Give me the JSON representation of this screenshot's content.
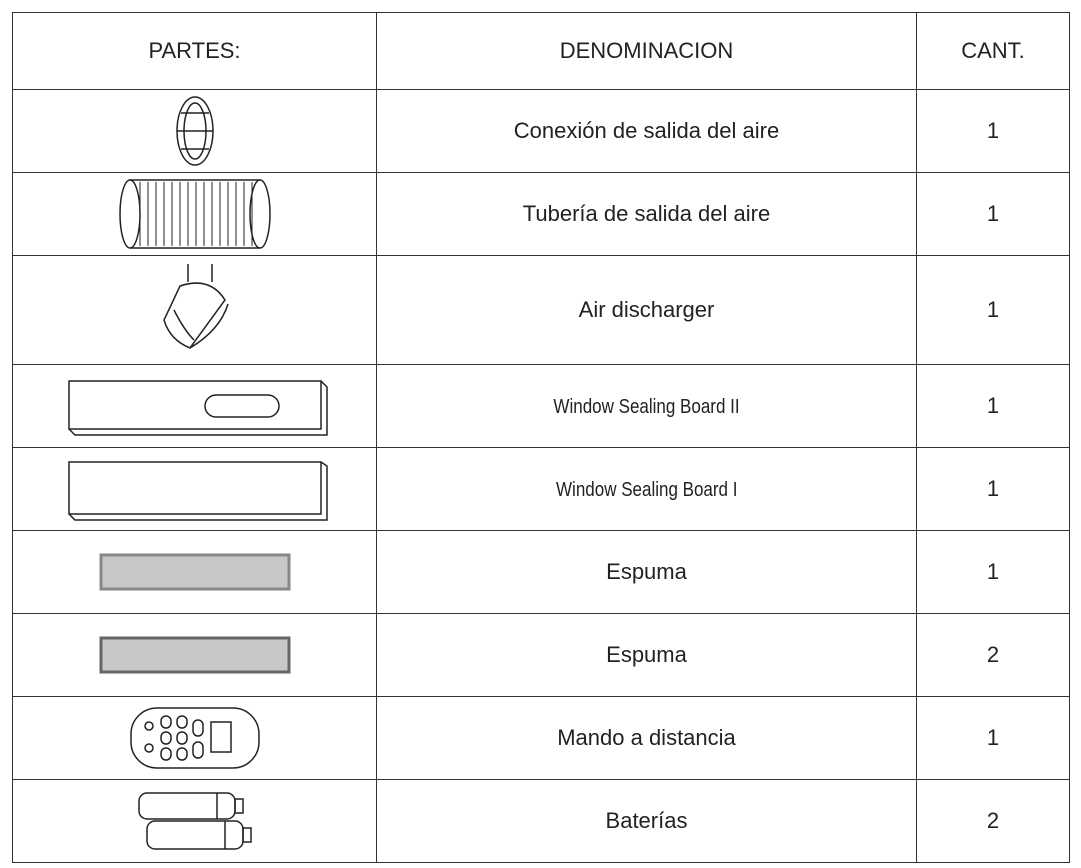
{
  "table": {
    "header": [
      "PARTES:",
      "DENOMINACION",
      "CANT."
    ],
    "rows": [
      {
        "name": "Conexión de salida del aire",
        "qty": 1
      },
      {
        "name": "Tubería de salida del aire",
        "qty": 1
      },
      {
        "name": "Air discharger",
        "qty": 1
      },
      {
        "name": "Window Sealing Board II",
        "qty": 1
      },
      {
        "name": "Window Sealing Board I",
        "qty": 1
      },
      {
        "name": "Espuma",
        "qty": 1
      },
      {
        "name": "Espuma",
        "qty": 2
      },
      {
        "name": "Mando a distancia",
        "qty": 1
      },
      {
        "name": "Baterías",
        "qty": 2
      }
    ]
  }
}
